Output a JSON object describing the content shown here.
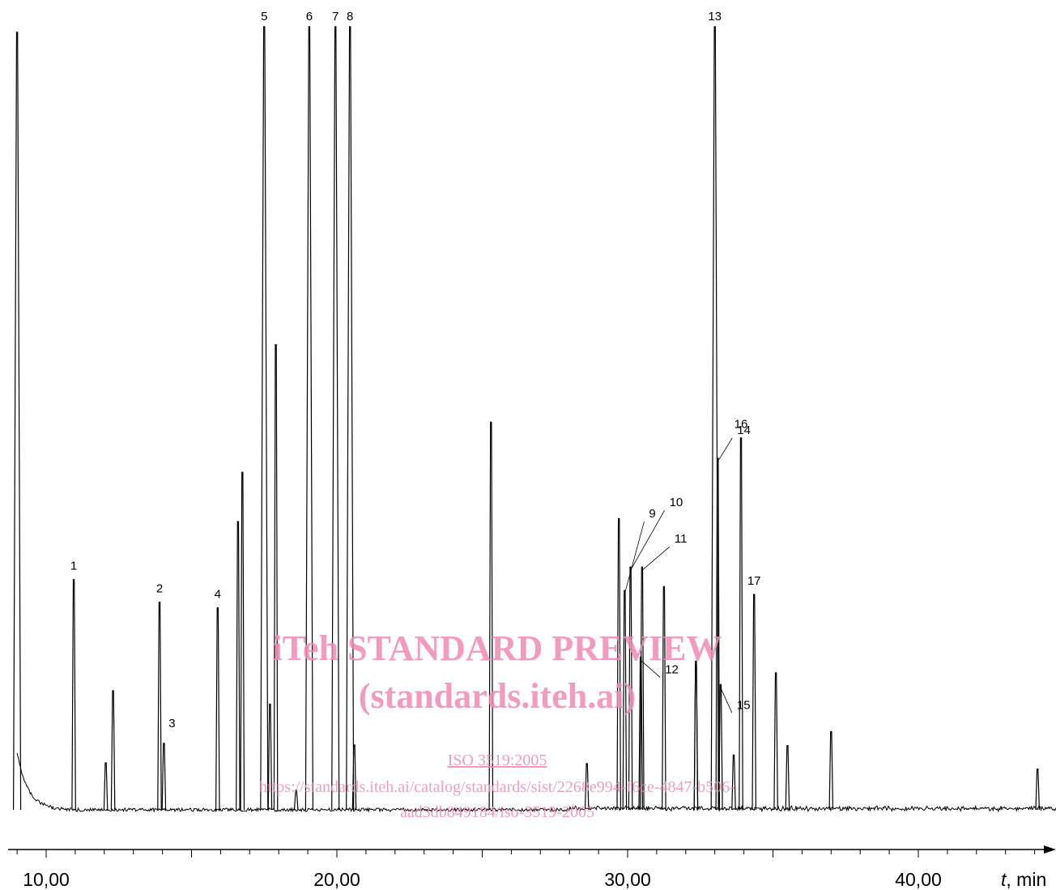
{
  "chart_data": {
    "type": "line",
    "title": "",
    "xlabel_var": "t",
    "xlabel_unit": ", min",
    "ylabel": "",
    "xlim": [
      8.8,
      45.4
    ],
    "x_ticks": [
      {
        "value": 10,
        "label": "10,00"
      },
      {
        "value": 20,
        "label": "20,00"
      },
      {
        "value": 30,
        "label": "30,00"
      },
      {
        "value": 40,
        "label": "40,00"
      }
    ],
    "line_color": "#000000",
    "grid": false,
    "peaks": [
      {
        "label": "",
        "t": 9.0,
        "height": 0.993
      },
      {
        "label": "1",
        "t": 10.95,
        "height": 0.294
      },
      {
        "label": "",
        "t": 12.05,
        "height": 0.06
      },
      {
        "label": "",
        "t": 12.3,
        "height": 0.152
      },
      {
        "label": "2",
        "t": 13.9,
        "height": 0.265
      },
      {
        "label": "3",
        "t": 14.05,
        "height": 0.085
      },
      {
        "label": "4",
        "t": 15.9,
        "height": 0.258
      },
      {
        "label": "",
        "t": 16.6,
        "height": 0.368
      },
      {
        "label": "",
        "t": 16.75,
        "height": 0.431
      },
      {
        "label": "5",
        "t": 17.5,
        "height": 1.0
      },
      {
        "label": "",
        "t": 17.7,
        "height": 0.135
      },
      {
        "label": "",
        "t": 17.9,
        "height": 0.594
      },
      {
        "label": "",
        "t": 18.6,
        "height": 0.025
      },
      {
        "label": "6",
        "t": 19.05,
        "height": 1.0
      },
      {
        "label": "7",
        "t": 19.95,
        "height": 1.0
      },
      {
        "label": "8",
        "t": 20.45,
        "height": 1.0
      },
      {
        "label": "",
        "t": 20.6,
        "height": 0.083
      },
      {
        "label": "",
        "t": 25.3,
        "height": 0.495
      },
      {
        "label": "",
        "t": 28.6,
        "height": 0.059
      },
      {
        "label": "",
        "t": 29.7,
        "height": 0.372
      },
      {
        "label": "9",
        "t": 29.9,
        "height": 0.28
      },
      {
        "label": "10",
        "t": 30.1,
        "height": 0.31
      },
      {
        "label": "11",
        "t": 30.5,
        "height": 0.31
      },
      {
        "label": "12",
        "t": 30.45,
        "height": 0.195
      },
      {
        "label": "",
        "t": 31.25,
        "height": 0.285
      },
      {
        "label": "",
        "t": 32.35,
        "height": 0.19
      },
      {
        "label": "",
        "t": 32.35,
        "height": 0.185
      },
      {
        "label": "13",
        "t": 33.0,
        "height": 1.0
      },
      {
        "label": "14",
        "t": 33.1,
        "height": 0.449
      },
      {
        "label": "15",
        "t": 33.2,
        "height": 0.16
      },
      {
        "label": "",
        "t": 33.65,
        "height": 0.07
      },
      {
        "label": "16",
        "t": 33.9,
        "height": 0.475
      },
      {
        "label": "17",
        "t": 34.35,
        "height": 0.275
      },
      {
        "label": "",
        "t": 35.1,
        "height": 0.175
      },
      {
        "label": "",
        "t": 35.5,
        "height": 0.082
      },
      {
        "label": "",
        "t": 37.0,
        "height": 0.1
      },
      {
        "label": "",
        "t": 44.1,
        "height": 0.052
      }
    ]
  },
  "watermark": {
    "line1": "iTeh STANDARD PREVIEW",
    "line2": "(standards.iteh.ai)",
    "line3": "ISO 3519:2005",
    "line4": "https://standards.iteh.ai/catalog/standards/sist/2268e994-f6ce-4847-b506-",
    "line5": "aad3db849184/iso-3519-2005"
  }
}
